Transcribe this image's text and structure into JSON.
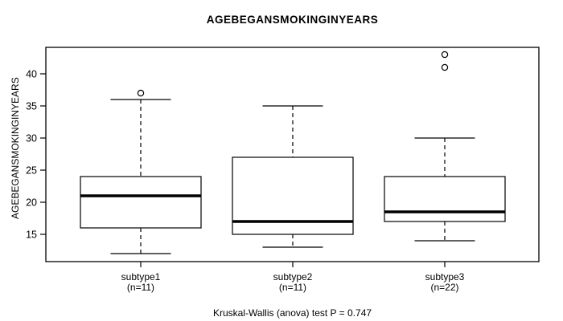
{
  "chart_data": {
    "type": "box",
    "title": "AGEBEGANSMOKINGINYEARS",
    "ylabel": "AGEBEGANSMOKINGINYEARS",
    "xlabel": "",
    "caption": "Kruskal-Wallis (anova) test P = 0.747",
    "yticks": [
      15,
      20,
      25,
      30,
      35,
      40
    ],
    "ylim": [
      10.75,
      44.125
    ],
    "grid": false,
    "legend": "none",
    "colors": {
      "stroke": "#000000",
      "box_fill": "#ffffff",
      "background": "#ffffff"
    },
    "groups": [
      {
        "label": "subtype1",
        "sublabel": "(n=11)",
        "whisker_low": 12,
        "q1": 16,
        "median": 21,
        "q3": 24,
        "whisker_high": 36,
        "outliers": [
          37
        ]
      },
      {
        "label": "subtype2",
        "sublabel": "(n=11)",
        "whisker_low": 13,
        "q1": 15,
        "median": 17,
        "q3": 27,
        "whisker_high": 35,
        "outliers": []
      },
      {
        "label": "subtype3",
        "sublabel": "(n=22)",
        "whisker_low": 14,
        "q1": 17,
        "median": 18.5,
        "q3": 24,
        "whisker_high": 30,
        "outliers": [
          41,
          43
        ]
      }
    ]
  }
}
